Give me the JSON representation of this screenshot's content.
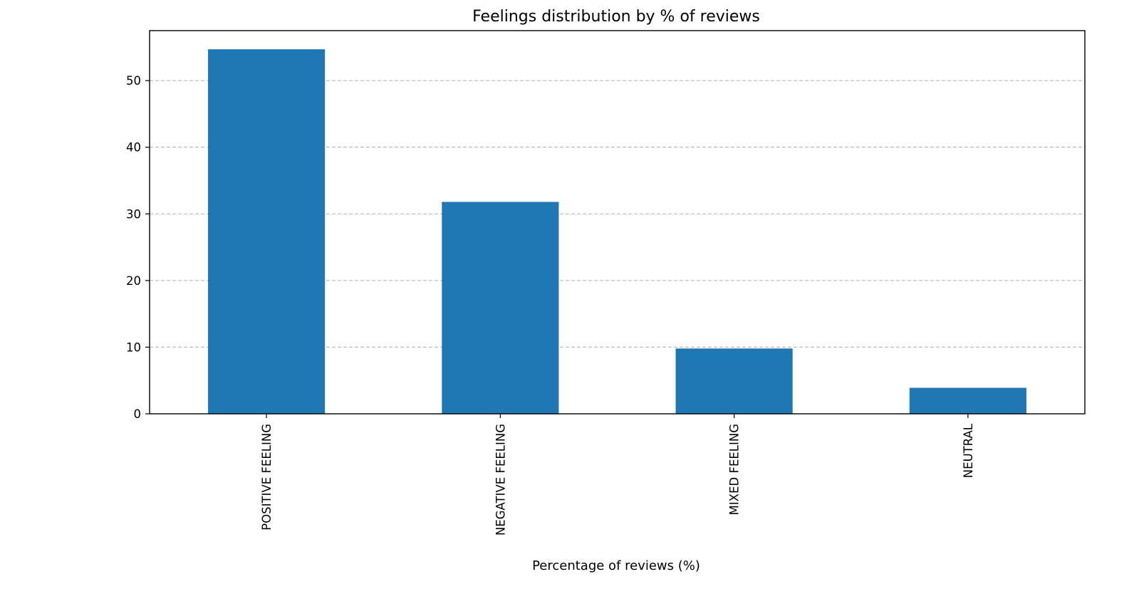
{
  "chart_data": {
    "type": "bar",
    "title": "Feelings distribution by % of reviews",
    "xlabel": "Percentage of reviews (%)",
    "ylabel": "",
    "categories": [
      "POSITIVE FEELING",
      "NEGATIVE FEELING",
      "MIXED FEELING",
      "NEUTRAL"
    ],
    "values": [
      54.7,
      31.8,
      9.8,
      3.9
    ],
    "ylim": [
      0,
      57.5
    ],
    "yticks": [
      0,
      10,
      20,
      30,
      40,
      50
    ],
    "grid": "y-axis dashed",
    "legend": "none",
    "bar_color": "#1f77b4",
    "grid_color": "#b0b0b0"
  }
}
